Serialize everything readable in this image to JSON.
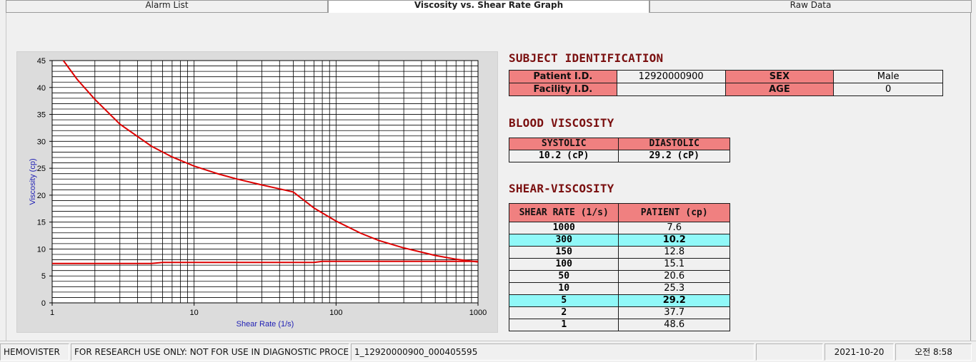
{
  "tabs": [
    {
      "label": "Alarm List"
    },
    {
      "label": "Viscosity vs. Shear Rate Graph"
    },
    {
      "label": "Raw Data"
    }
  ],
  "subject": {
    "title": "SUBJECT IDENTIFICATION",
    "patient_id_label": "Patient I.D.",
    "patient_id_value": "12920000900",
    "sex_label": "SEX",
    "sex_value": "Male",
    "facility_id_label": "Facility I.D.",
    "facility_id_value": "",
    "age_label": "AGE",
    "age_value": "0"
  },
  "blood_viscosity": {
    "title": "BLOOD VISCOSITY",
    "systolic_label": "SYSTOLIC",
    "diastolic_label": "DIASTOLIC",
    "systolic_value": "10.2 (cP)",
    "diastolic_value": "29.2 (cP)"
  },
  "shear_viscosity": {
    "title": "SHEAR-VISCOSITY",
    "col_rate": "SHEAR RATE (1/s)",
    "col_patient": "PATIENT (cp)",
    "rows": [
      {
        "rate": "1000",
        "value": "7.6",
        "highlight": false
      },
      {
        "rate": "300",
        "value": "10.2",
        "highlight": true
      },
      {
        "rate": "150",
        "value": "12.8",
        "highlight": false
      },
      {
        "rate": "100",
        "value": "15.1",
        "highlight": false
      },
      {
        "rate": "50",
        "value": "20.6",
        "highlight": false
      },
      {
        "rate": "10",
        "value": "25.3",
        "highlight": false
      },
      {
        "rate": "5",
        "value": "29.2",
        "highlight": true
      },
      {
        "rate": "2",
        "value": "37.7",
        "highlight": false
      },
      {
        "rate": "1",
        "value": "48.6",
        "highlight": false
      }
    ]
  },
  "status_bar": {
    "app": "HEMOVISTER",
    "notice": "FOR RESEARCH USE ONLY: NOT FOR USE IN DIAGNOSTIC PROCEDURES",
    "record": "1_12920000900_000405595",
    "empty": "",
    "date": "2021-10-20",
    "time": "오전 8:58"
  },
  "colors": {
    "header_fill": "#f08080",
    "highlight_fill": "#90f8f8",
    "title_color": "#7a0f0f",
    "curve_color": "#dd0000",
    "axis_label_color": "#1f1fb4"
  },
  "chart_data": {
    "type": "line",
    "xlabel": "Shear Rate (1/s)",
    "ylabel": "Viscosity (cp)",
    "x_scale": "log",
    "xlim": [
      1,
      1000
    ],
    "ylim": [
      0,
      45
    ],
    "x_ticks": [
      1,
      10,
      100,
      1000
    ],
    "y_ticks": [
      0,
      5,
      10,
      15,
      20,
      25,
      30,
      35,
      40,
      45
    ],
    "grid": true,
    "series": [
      {
        "x": [
          1.2,
          1.5,
          2,
          3,
          5,
          7,
          10,
          15,
          20,
          30,
          50,
          70,
          100,
          150,
          200,
          300,
          500,
          700,
          1000
        ],
        "y": [
          45,
          41.5,
          37.8,
          33.2,
          29.1,
          27.1,
          25.4,
          23.9,
          23.0,
          21.9,
          20.6,
          17.6,
          15.2,
          12.9,
          11.6,
          10.2,
          8.8,
          8.1,
          7.6
        ]
      },
      {
        "x": [
          1,
          5,
          6,
          70,
          80,
          1000
        ],
        "y": [
          7.3,
          7.3,
          7.5,
          7.5,
          7.7,
          7.7
        ]
      }
    ]
  }
}
